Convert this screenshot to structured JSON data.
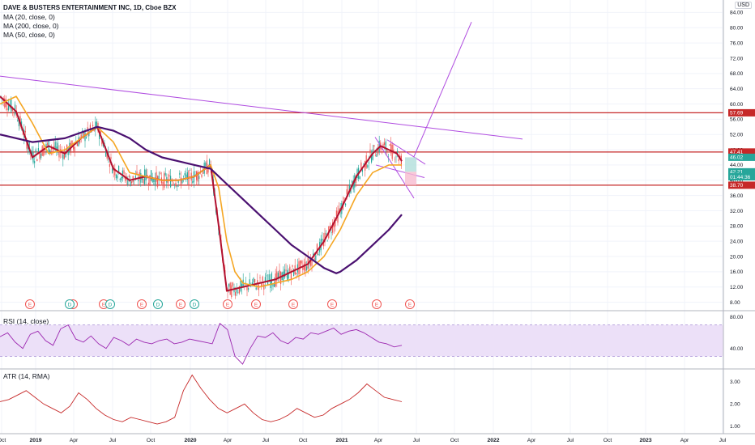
{
  "header": {
    "symbol_title": "DAVE & BUSTERS ENTERTAINMENT INC, 1D, Cboe BZX",
    "ma20_label": "MA (20, close, 0)",
    "ma200_label": "MA (200, close, 0)",
    "ma50_label": "MA (50, close, 0)",
    "currency": "USD"
  },
  "panes": {
    "rsi_label": "RSI (14, close)",
    "atr_label": "ATR (14, RMA)"
  },
  "colors": {
    "ma20": "#b2102f",
    "ma50": "#f5a623",
    "ma200": "#4a1070",
    "support_lines": "#c62828",
    "trendline": "#b04ce0",
    "rsi_line": "#9c27b0",
    "rsi_band": "#ece0f8",
    "atr_line": "#c62828",
    "candle_up": "#26a69a",
    "candle_down": "#ef5350",
    "target_box": "#b2dfdb",
    "stop_box": "#f8bbd0",
    "earnings_badge": "#ef5350",
    "dividend_badge": "#26a69a"
  },
  "chart_data": {
    "type": "line",
    "title": "DAVE & BUSTERS ENTERTAINMENT INC, 1D, Cboe BZX",
    "x_axis_labels": [
      "Oct",
      "2019",
      "Apr",
      "Jul",
      "Oct",
      "2020",
      "Apr",
      "Jul",
      "Oct",
      "2021",
      "Apr",
      "Jul",
      "Oct",
      "2022",
      "Apr",
      "Jul",
      "Oct",
      "2023",
      "Apr",
      "Jul"
    ],
    "price_axis": {
      "ylim": [
        6,
        86
      ],
      "ticks": [
        "8.00",
        "12.00",
        "16.00",
        "20.00",
        "24.00",
        "28.00",
        "32.00",
        "36.00",
        "40.00",
        "44.00",
        "48.00",
        "52.00",
        "56.00",
        "60.00",
        "64.00",
        "68.00",
        "72.00",
        "76.00",
        "80.00",
        "84.00"
      ]
    },
    "price_labels": [
      {
        "text": "57.69",
        "value": 57.69,
        "kind": "resistance"
      },
      {
        "text": "47.41",
        "value": 47.41,
        "kind": "resistance"
      },
      {
        "text": "46.02",
        "value": 46.02,
        "kind": "target"
      },
      {
        "text": "42.21",
        "value": 42.21,
        "kind": "last"
      },
      {
        "text": "01:44:36",
        "value": 40.9,
        "kind": "countdown"
      },
      {
        "text": "38.70",
        "value": 38.7,
        "kind": "support"
      }
    ],
    "horizontal_levels": [
      57.69,
      47.41,
      38.7
    ],
    "series": [
      {
        "name": "MA (20, close, 0)",
        "x": [
          0,
          20,
          40,
          60,
          80,
          100,
          120,
          140,
          160,
          180,
          200,
          220,
          240,
          260,
          270,
          280,
          300,
          320,
          340,
          360,
          380,
          400,
          420,
          440,
          460,
          470,
          480,
          490,
          496
        ],
        "values": [
          62,
          58,
          46,
          49,
          47,
          51,
          54,
          43,
          40,
          41,
          40,
          40,
          41,
          44,
          28,
          11,
          12,
          13,
          14,
          16,
          18,
          24,
          32,
          41,
          47,
          49,
          48,
          47,
          45
        ]
      },
      {
        "name": "MA (50, close, 0)",
        "x": [
          0,
          20,
          40,
          60,
          80,
          100,
          120,
          140,
          160,
          180,
          200,
          220,
          240,
          260,
          270,
          280,
          290,
          300,
          320,
          340,
          360,
          380,
          400,
          420,
          440,
          460,
          480,
          496
        ],
        "values": [
          60,
          62,
          55,
          47,
          48,
          51,
          54,
          50,
          42,
          41,
          40,
          40,
          41,
          44,
          38,
          24,
          16,
          13,
          12,
          13,
          14,
          16,
          20,
          27,
          36,
          42,
          44,
          44
        ]
      },
      {
        "name": "MA (200, close, 0)",
        "x": [
          0,
          40,
          80,
          120,
          140,
          160,
          180,
          200,
          220,
          240,
          260,
          280,
          300,
          320,
          340,
          360,
          380,
          400,
          415,
          420,
          440,
          460,
          480,
          496
        ],
        "values": [
          52,
          50,
          51,
          54,
          53,
          51,
          48,
          46,
          45,
          44,
          43,
          39,
          35,
          31,
          27,
          23,
          20,
          17,
          15.6,
          16,
          19,
          23,
          27,
          31
        ]
      }
    ],
    "trendlines": [
      {
        "x": [
          0,
          645
        ],
        "values": [
          67.3,
          50.8
        ]
      },
      {
        "x": [
          463,
          511
        ],
        "values": [
          51.3,
          35.3
        ]
      },
      {
        "x": [
          464,
          524
        ],
        "values": [
          44,
          40.7
        ]
      },
      {
        "x": [
          478,
          525
        ],
        "values": [
          50.6,
          44.2
        ]
      },
      {
        "x": [
          511,
          582
        ],
        "values": [
          46.2,
          81.5
        ]
      }
    ],
    "earnings_events": [
      37,
      90,
      128,
      175,
      223,
      281,
      316,
      362,
      410,
      465,
      506
    ],
    "dividend_events": [
      86,
      136,
      195,
      240
    ],
    "rsi": {
      "name": "RSI (14, close)",
      "ylim": [
        15,
        85
      ],
      "band": [
        30,
        70
      ],
      "ticks": [
        "80.00",
        "40.00"
      ],
      "values": [
        55,
        60,
        48,
        40,
        58,
        62,
        50,
        44,
        65,
        70,
        52,
        48,
        56,
        46,
        40,
        54,
        50,
        44,
        52,
        48,
        46,
        50,
        52,
        46,
        48,
        52,
        50,
        48,
        46,
        72,
        64,
        30,
        20,
        40,
        56,
        54,
        60,
        50,
        46,
        54,
        52,
        60,
        58,
        62,
        66,
        58,
        62,
        64,
        60,
        54,
        48,
        46,
        42,
        44
      ]
    },
    "atr": {
      "name": "ATR (14, RMA)",
      "ylim": [
        0.7,
        3.5
      ],
      "ticks": [
        "3.00",
        "2.00",
        "1.00"
      ],
      "values": [
        2.1,
        2.2,
        2.4,
        2.6,
        2.3,
        2.0,
        1.8,
        1.6,
        1.9,
        2.5,
        2.2,
        1.8,
        1.5,
        1.3,
        1.2,
        1.4,
        1.3,
        1.2,
        1.1,
        1.2,
        1.4,
        2.6,
        3.3,
        2.7,
        2.2,
        1.8,
        1.6,
        1.8,
        2.0,
        1.6,
        1.3,
        1.2,
        1.3,
        1.5,
        1.8,
        1.6,
        1.4,
        1.5,
        1.8,
        2.0,
        2.2,
        2.5,
        2.9,
        2.6,
        2.3,
        2.2,
        2.1
      ]
    }
  }
}
